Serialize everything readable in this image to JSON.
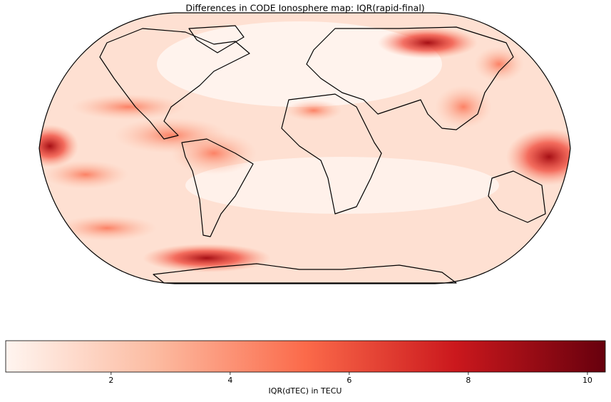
{
  "title": "Differences in CODE Ionosphere map: IQR(rapid-final)",
  "colorbar": {
    "label": "IQR(dTEC) in TECU",
    "range": [
      0.23,
      10.3
    ],
    "ticks": [
      2,
      4,
      6,
      8,
      10
    ],
    "colors": [
      "#fff5f0",
      "#fcbba1",
      "#fb6a4a",
      "#cb181d",
      "#67000d"
    ]
  }
}
